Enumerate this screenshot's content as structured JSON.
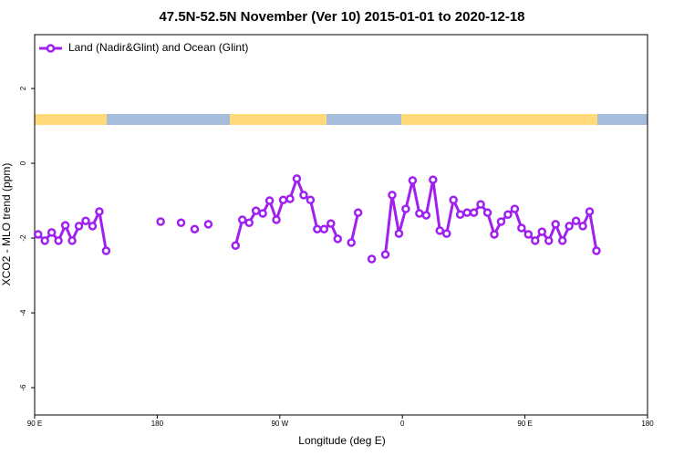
{
  "chart_data": {
    "type": "line",
    "title": "47.5N-52.5N November (Ver 10)   2015-01-01 to 2020-12-18",
    "x_label": "Longitude (deg E)",
    "y_label": "XCO2 - MLO trend (ppm)",
    "xlim": [
      90,
      540
    ],
    "ylim": [
      -6.73,
      3.44
    ],
    "xticks": [
      {
        "value": 90,
        "label": "90 E"
      },
      180,
      {
        "value": 270,
        "label": "90 W"
      },
      {
        "value": 360,
        "label": "0"
      },
      {
        "value": 450,
        "label": "90 E"
      },
      {
        "value": 540,
        "label": "180"
      }
    ],
    "yticks": [
      2,
      0,
      -2,
      -4,
      -6
    ],
    "legend_position": "top-left",
    "x": [
      92.5,
      97.5,
      102.5,
      107.5,
      112.5,
      117.5,
      122.5,
      127.5,
      132.5,
      137.5,
      142.5,
      147.5,
      152.5,
      157.5,
      162.5,
      167.5,
      172.5,
      177.5,
      182.5,
      187.5,
      192.5,
      197.5,
      202.5,
      207.5,
      212.5,
      217.5,
      222.5,
      227.5,
      232.5,
      237.5,
      242.5,
      247.5,
      252.5,
      257.5,
      262.5,
      267.5,
      272.5,
      277.5,
      282.5,
      287.5,
      292.5,
      297.5,
      302.5,
      307.5,
      312.5,
      317.5,
      322.5,
      327.5,
      332.5,
      337.5,
      342.5,
      347.5,
      352.5,
      357.5,
      362.5,
      367.5,
      372.5,
      377.5,
      382.5,
      387.5,
      392.5,
      397.5,
      402.5,
      407.5,
      412.5,
      417.5,
      422.5,
      427.5,
      432.5,
      437.5,
      442.5,
      447.5,
      452.5,
      457.5,
      462.5,
      467.5,
      472.5,
      477.5,
      482.5,
      487.5,
      492.5,
      497.5,
      502.5
    ],
    "series": [
      {
        "name": "Land (Nadir&Glint) and Ocean (Glint)",
        "color": "#a020f0",
        "values": [
          -1.9,
          -2.07,
          -1.85,
          -2.07,
          -1.66,
          -2.07,
          -1.68,
          -1.54,
          -1.68,
          -1.29,
          -2.34,
          null,
          null,
          null,
          null,
          null,
          null,
          null,
          -1.56,
          null,
          null,
          -1.59,
          null,
          -1.76,
          null,
          -1.63,
          null,
          null,
          null,
          -2.2,
          -1.51,
          -1.59,
          -1.27,
          -1.34,
          -1.0,
          -1.51,
          -0.98,
          -0.95,
          -0.41,
          -0.85,
          -0.98,
          -1.76,
          -1.76,
          -1.61,
          -2.02,
          null,
          -2.12,
          -1.32,
          null,
          -2.56,
          null,
          -2.44,
          -0.85,
          -1.88,
          -1.22,
          -0.46,
          -1.34,
          -1.39,
          -0.44,
          -1.8,
          -1.88,
          -0.98,
          -1.37,
          -1.32,
          -1.32,
          -1.1,
          -1.32,
          -1.9,
          -1.56,
          -1.37,
          -1.22,
          -1.73,
          -1.9,
          -2.07,
          -1.83,
          -2.07,
          -1.63,
          -2.07,
          -1.68,
          -1.54,
          -1.68,
          -1.29,
          -2.34
        ]
      }
    ]
  }
}
